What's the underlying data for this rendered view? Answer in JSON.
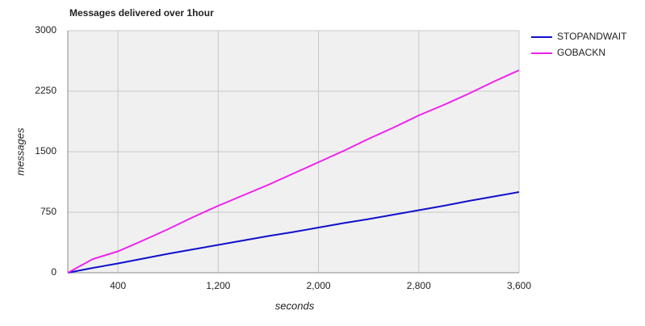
{
  "chart_data": {
    "type": "line",
    "title": "Messages delivered over 1hour",
    "x_label": "seconds",
    "y_label": "messages",
    "x": [
      0,
      200,
      400,
      600,
      800,
      1000,
      1200,
      1400,
      1600,
      1800,
      2000,
      2200,
      2400,
      2600,
      2800,
      3000,
      3200,
      3400,
      3600
    ],
    "series": [
      {
        "name": "STOPANDWAIT",
        "color": "#1010cc",
        "values": [
          0,
          60,
          115,
          175,
          235,
          290,
          345,
          400,
          455,
          505,
          560,
          615,
          665,
          720,
          775,
          830,
          890,
          945,
          1000
        ]
      },
      {
        "name": "GOBACKN",
        "color": "#ee22ee",
        "values": [
          0,
          170,
          265,
          400,
          540,
          690,
          830,
          960,
          1090,
          1230,
          1370,
          1510,
          1660,
          1800,
          1950,
          2080,
          2220,
          2370,
          2510
        ]
      }
    ],
    "xlim": [
      0,
      3600
    ],
    "ylim": [
      0,
      3000
    ],
    "xticks": [
      400,
      {
        "value": 1200,
        "label": "1,200"
      },
      {
        "value": 2000,
        "label": "2,000"
      },
      {
        "value": 2800,
        "label": "2,800"
      },
      {
        "value": 3600,
        "label": "3,600"
      }
    ],
    "yticks": [
      0,
      750,
      1500,
      2250,
      3000
    ],
    "grid": true,
    "legend": "right"
  }
}
